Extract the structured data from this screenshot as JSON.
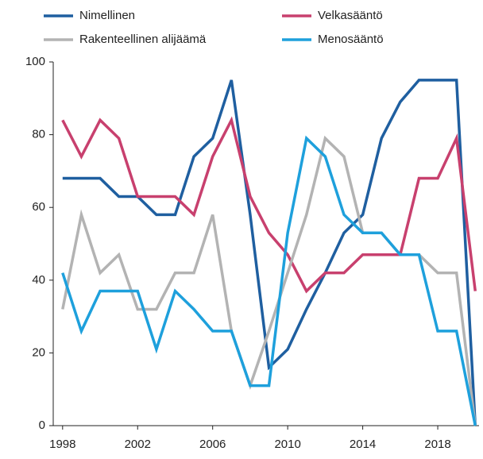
{
  "chart_data": {
    "type": "line",
    "x": [
      1998,
      1999,
      2000,
      2001,
      2002,
      2003,
      2004,
      2005,
      2006,
      2007,
      2008,
      2009,
      2010,
      2011,
      2012,
      2013,
      2014,
      2015,
      2016,
      2017,
      2018,
      2019,
      2020
    ],
    "series": [
      {
        "name": "Nimellinen",
        "color": "#1f5fa0",
        "values": [
          68,
          68,
          68,
          63,
          63,
          58,
          58,
          74,
          79,
          95,
          58,
          16,
          21,
          32,
          42,
          53,
          58,
          79,
          89,
          95,
          95,
          95,
          0
        ]
      },
      {
        "name": "Velkasääntö",
        "color": "#c8406e",
        "values": [
          84,
          74,
          84,
          79,
          63,
          63,
          63,
          58,
          74,
          84,
          63,
          53,
          47,
          37,
          42,
          42,
          47,
          47,
          47,
          68,
          68,
          79,
          37
        ]
      },
      {
        "name": "Rakenteellinen alijäämä",
        "color": "#b3b3b3",
        "values": [
          32,
          58,
          42,
          47,
          32,
          32,
          42,
          42,
          58,
          26,
          11,
          26,
          42,
          58,
          79,
          74,
          53,
          53,
          47,
          47,
          42,
          42,
          0
        ]
      },
      {
        "name": "Menosääntö",
        "color": "#1ea0dc",
        "values": [
          42,
          26,
          37,
          37,
          37,
          21,
          37,
          32,
          26,
          26,
          11,
          11,
          53,
          79,
          74,
          58,
          53,
          53,
          47,
          47,
          26,
          26,
          0
        ]
      }
    ],
    "xlim": [
      1997.5,
      2020.2
    ],
    "xticks": [
      1998,
      2002,
      2006,
      2010,
      2014,
      2018
    ],
    "ylim": [
      0,
      100
    ],
    "yticks": [
      0,
      20,
      40,
      60,
      80,
      100
    ]
  }
}
